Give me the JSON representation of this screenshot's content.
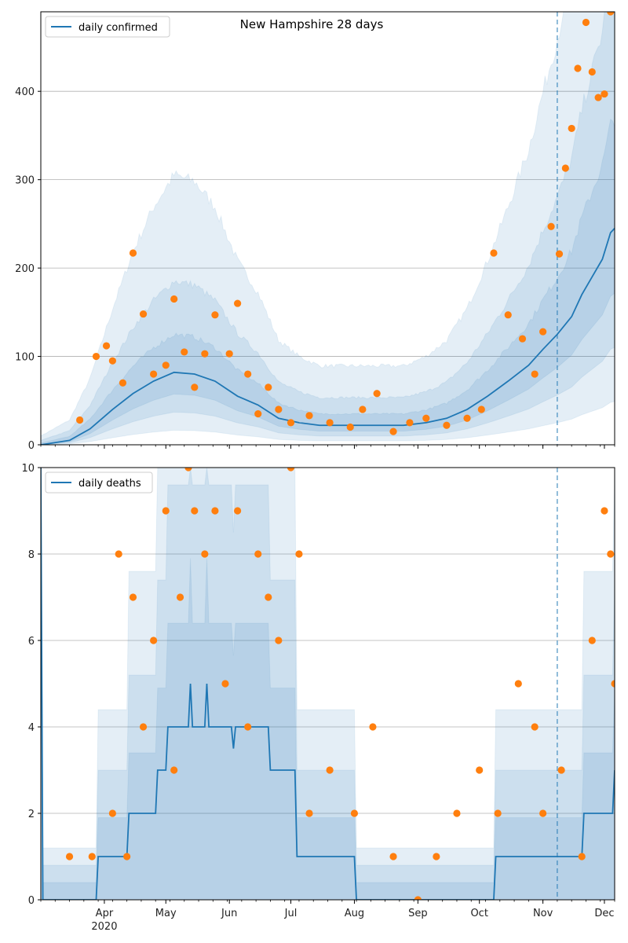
{
  "colors": {
    "line": "#1f77b4",
    "points": "#ff7f0e",
    "band": "#1f77b4",
    "grid": "#b0b0b0",
    "today": "#1f77b4"
  },
  "chart_data": [
    {
      "type": "line",
      "title": "New Hampshire 28 days",
      "legend": {
        "label": "daily confirmed",
        "placement": "top-left"
      },
      "x_range": [
        "2020-03-01",
        "2020-12-06"
      ],
      "x_ticks": [
        {
          "date": "2020-04-01",
          "label": "Apr",
          "sublabel": "2020"
        },
        {
          "date": "2020-05-01",
          "label": "May"
        },
        {
          "date": "2020-06-01",
          "label": "Jun"
        },
        {
          "date": "2020-07-01",
          "label": "Jul"
        },
        {
          "date": "2020-08-01",
          "label": "Aug"
        },
        {
          "date": "2020-09-01",
          "label": "Sep"
        },
        {
          "date": "2020-10-01",
          "label": "Oct"
        },
        {
          "date": "2020-11-01",
          "label": "Nov"
        },
        {
          "date": "2020-12-01",
          "label": "Dec"
        }
      ],
      "ylim": [
        0,
        490
      ],
      "y_ticks": [
        "0",
        "100",
        "200",
        "300",
        "400"
      ],
      "grid": true,
      "vline_date": "2020-11-08",
      "series": [
        {
          "kind": "line",
          "x": [
            "2020-03-01",
            "2020-03-15",
            "2020-03-25",
            "2020-04-05",
            "2020-04-15",
            "2020-04-25",
            "2020-05-05",
            "2020-05-15",
            "2020-05-25",
            "2020-06-05",
            "2020-06-15",
            "2020-06-25",
            "2020-07-05",
            "2020-07-15",
            "2020-07-25",
            "2020-08-05",
            "2020-08-15",
            "2020-08-25",
            "2020-09-05",
            "2020-09-15",
            "2020-09-25",
            "2020-10-05",
            "2020-10-15",
            "2020-10-25",
            "2020-11-01",
            "2020-11-08",
            "2020-11-15",
            "2020-11-20",
            "2020-11-25",
            "2020-11-30",
            "2020-12-04",
            "2020-12-06"
          ],
          "y": [
            0,
            5,
            18,
            40,
            58,
            72,
            82,
            80,
            72,
            55,
            45,
            30,
            25,
            22,
            22,
            22,
            22,
            22,
            25,
            30,
            40,
            55,
            72,
            90,
            108,
            125,
            145,
            170,
            190,
            210,
            240,
            245
          ]
        },
        {
          "kind": "scatter",
          "x": [
            "2020-03-20",
            "2020-03-28",
            "2020-04-02",
            "2020-04-05",
            "2020-04-10",
            "2020-04-15",
            "2020-04-20",
            "2020-04-25",
            "2020-05-01",
            "2020-05-05",
            "2020-05-10",
            "2020-05-15",
            "2020-05-20",
            "2020-05-25",
            "2020-06-01",
            "2020-06-05",
            "2020-06-10",
            "2020-06-15",
            "2020-06-20",
            "2020-06-25",
            "2020-07-01",
            "2020-07-10",
            "2020-07-20",
            "2020-07-30",
            "2020-08-05",
            "2020-08-12",
            "2020-08-20",
            "2020-08-28",
            "2020-09-05",
            "2020-09-15",
            "2020-09-25",
            "2020-10-02",
            "2020-10-08",
            "2020-10-15",
            "2020-10-22",
            "2020-10-28",
            "2020-11-01",
            "2020-11-05",
            "2020-11-09",
            "2020-11-12",
            "2020-11-15",
            "2020-11-18",
            "2020-11-22",
            "2020-11-25",
            "2020-11-28",
            "2020-12-01",
            "2020-12-04"
          ],
          "y": [
            28,
            100,
            112,
            95,
            70,
            217,
            148,
            80,
            90,
            165,
            105,
            65,
            103,
            147,
            103,
            160,
            80,
            35,
            65,
            40,
            25,
            33,
            25,
            20,
            40,
            58,
            15,
            25,
            30,
            22,
            30,
            40,
            217,
            147,
            120,
            80,
            128,
            247,
            216,
            313,
            358,
            426,
            478,
            422,
            393,
            397,
            490
          ]
        }
      ]
    },
    {
      "type": "line",
      "title": "",
      "legend": {
        "label": "daily deaths",
        "placement": "top-left"
      },
      "x_range": [
        "2020-03-01",
        "2020-12-06"
      ],
      "ylim": [
        0,
        10
      ],
      "y_ticks": [
        "0",
        "2",
        "4",
        "6",
        "8",
        "10"
      ],
      "grid": true,
      "vline_date": "2020-11-08",
      "series": [
        {
          "kind": "line",
          "x": [
            "2020-03-01",
            "2020-03-02",
            "2020-03-28",
            "2020-03-29",
            "2020-04-12",
            "2020-04-13",
            "2020-04-26",
            "2020-04-27",
            "2020-05-01",
            "2020-05-02",
            "2020-05-05",
            "2020-05-06",
            "2020-05-12",
            "2020-05-13",
            "2020-05-14",
            "2020-05-20",
            "2020-05-21",
            "2020-05-22",
            "2020-06-02",
            "2020-06-03",
            "2020-06-04",
            "2020-06-20",
            "2020-06-21",
            "2020-07-03",
            "2020-07-04",
            "2020-08-01",
            "2020-08-02",
            "2020-10-08",
            "2020-10-09",
            "2020-11-20",
            "2020-11-21",
            "2020-12-05",
            "2020-12-06"
          ],
          "y": [
            10,
            0,
            0,
            1,
            1,
            2,
            2,
            3,
            3,
            4,
            4,
            4,
            4,
            5,
            4,
            4,
            5,
            4,
            4,
            3.5,
            4,
            4,
            3,
            3,
            1,
            1,
            0,
            0,
            1,
            1,
            2,
            2,
            3
          ]
        },
        {
          "kind": "scatter",
          "x": [
            "2020-03-15",
            "2020-03-26",
            "2020-04-05",
            "2020-04-08",
            "2020-04-12",
            "2020-04-15",
            "2020-04-20",
            "2020-04-25",
            "2020-05-01",
            "2020-05-05",
            "2020-05-08",
            "2020-05-12",
            "2020-05-15",
            "2020-05-20",
            "2020-05-25",
            "2020-05-30",
            "2020-06-05",
            "2020-06-10",
            "2020-06-15",
            "2020-06-20",
            "2020-06-25",
            "2020-07-01",
            "2020-07-05",
            "2020-07-10",
            "2020-07-20",
            "2020-08-01",
            "2020-08-10",
            "2020-08-20",
            "2020-09-01",
            "2020-09-10",
            "2020-09-20",
            "2020-10-01",
            "2020-10-10",
            "2020-10-20",
            "2020-10-28",
            "2020-11-01",
            "2020-11-10",
            "2020-11-20",
            "2020-11-25",
            "2020-12-01",
            "2020-12-04",
            "2020-12-06"
          ],
          "y": [
            1,
            1,
            2,
            8,
            1,
            7,
            4,
            6,
            9,
            3,
            7,
            10,
            9,
            8,
            9,
            5,
            9,
            4,
            8,
            7,
            6,
            10,
            8,
            2,
            3,
            2,
            4,
            1,
            0,
            1,
            2,
            3,
            2,
            5,
            4,
            2,
            3,
            1,
            6,
            9,
            8,
            5
          ]
        }
      ]
    }
  ]
}
